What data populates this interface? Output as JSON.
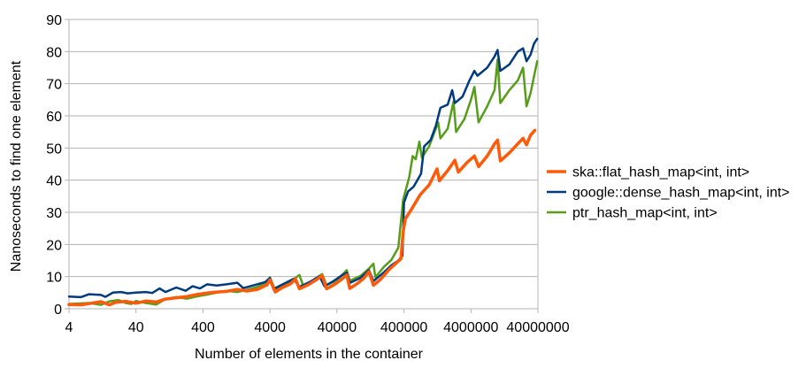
{
  "chart_data": {
    "type": "line",
    "title": "",
    "xlabel": "Number of elements in the container",
    "ylabel": "Nanoseconds to find one element",
    "x_scale": "log",
    "xlim": [
      4,
      40000000
    ],
    "ylim": [
      0,
      90
    ],
    "y_ticks": [
      "0",
      "10",
      "20",
      "30",
      "40",
      "50",
      "60",
      "70",
      "80",
      "90"
    ],
    "x_ticks": [
      "4",
      "40",
      "400",
      "4000",
      "40000",
      "400000",
      "4000000",
      "40000000"
    ],
    "grid": "horizontal",
    "legend_position": "right",
    "series": [
      {
        "name": "ska::flat_hash_map<int, int>",
        "color": "#ff5a0a",
        "points": [
          [
            4,
            1.3
          ],
          [
            6,
            1.2
          ],
          [
            8,
            1.6
          ],
          [
            12,
            2.2
          ],
          [
            16,
            1.2
          ],
          [
            20,
            2.0
          ],
          [
            28,
            2.3
          ],
          [
            40,
            1.7
          ],
          [
            56,
            2.4
          ],
          [
            80,
            2.1
          ],
          [
            110,
            3.0
          ],
          [
            160,
            3.4
          ],
          [
            230,
            3.8
          ],
          [
            320,
            4.4
          ],
          [
            460,
            4.9
          ],
          [
            640,
            5.2
          ],
          [
            900,
            5.4
          ],
          [
            1300,
            6.0
          ],
          [
            1800,
            5.5
          ],
          [
            2600,
            6.0
          ],
          [
            3600,
            7.4
          ],
          [
            4000,
            9.0
          ],
          [
            4800,
            5.2
          ],
          [
            6000,
            6.5
          ],
          [
            8200,
            7.8
          ],
          [
            9600,
            9.3
          ],
          [
            11000,
            6.2
          ],
          [
            15000,
            7.5
          ],
          [
            20000,
            9.1
          ],
          [
            24000,
            10.3
          ],
          [
            28000,
            6.2
          ],
          [
            36000,
            7.4
          ],
          [
            46000,
            9.0
          ],
          [
            56000,
            10.5
          ],
          [
            62000,
            6.3
          ],
          [
            80000,
            7.8
          ],
          [
            100000,
            9.4
          ],
          [
            120000,
            11.5
          ],
          [
            140000,
            7.3
          ],
          [
            180000,
            9.2
          ],
          [
            240000,
            12.2
          ],
          [
            300000,
            14.0
          ],
          [
            360000,
            15.5
          ],
          [
            390000,
            24.0
          ],
          [
            420000,
            28.0
          ],
          [
            520000,
            31.0
          ],
          [
            700000,
            35.5
          ],
          [
            950000,
            38.5
          ],
          [
            1250000,
            43.5
          ],
          [
            1350000,
            39.8
          ],
          [
            1800000,
            43.0
          ],
          [
            2300000,
            46.2
          ],
          [
            2600000,
            42.5
          ],
          [
            3500000,
            45.5
          ],
          [
            4500000,
            47.5
          ],
          [
            5200000,
            44.2
          ],
          [
            7000000,
            47.5
          ],
          [
            9000000,
            51.3
          ],
          [
            10000000,
            52.5
          ],
          [
            11000000,
            46.0
          ],
          [
            15000000,
            48.5
          ],
          [
            20000000,
            51.3
          ],
          [
            24000000,
            53.0
          ],
          [
            27000000,
            51.0
          ],
          [
            31000000,
            54.0
          ],
          [
            36000000,
            55.5
          ]
        ]
      },
      {
        "name": "google::dense_hash_map<int, int>",
        "color": "#003b80",
        "points": [
          [
            4,
            3.8
          ],
          [
            6,
            3.6
          ],
          [
            8,
            4.5
          ],
          [
            12,
            4.3
          ],
          [
            14,
            3.7
          ],
          [
            18,
            5.0
          ],
          [
            24,
            5.2
          ],
          [
            30,
            4.8
          ],
          [
            40,
            5.0
          ],
          [
            56,
            5.2
          ],
          [
            70,
            4.9
          ],
          [
            90,
            6.3
          ],
          [
            110,
            5.2
          ],
          [
            160,
            6.6
          ],
          [
            220,
            5.6
          ],
          [
            280,
            7.0
          ],
          [
            360,
            6.3
          ],
          [
            460,
            7.6
          ],
          [
            640,
            7.2
          ],
          [
            900,
            7.6
          ],
          [
            1300,
            8.1
          ],
          [
            1600,
            6.4
          ],
          [
            2400,
            7.4
          ],
          [
            3400,
            8.3
          ],
          [
            4000,
            9.6
          ],
          [
            4500,
            6.1
          ],
          [
            6200,
            7.6
          ],
          [
            9000,
            9.3
          ],
          [
            11000,
            6.8
          ],
          [
            16000,
            8.4
          ],
          [
            22000,
            10.1
          ],
          [
            26000,
            7.0
          ],
          [
            36000,
            8.7
          ],
          [
            48000,
            10.5
          ],
          [
            56000,
            11.2
          ],
          [
            62000,
            8.0
          ],
          [
            88000,
            9.5
          ],
          [
            120000,
            12.0
          ],
          [
            140000,
            8.6
          ],
          [
            200000,
            11.3
          ],
          [
            260000,
            13.5
          ],
          [
            330000,
            15.0
          ],
          [
            380000,
            16.5
          ],
          [
            400000,
            33.0
          ],
          [
            460000,
            36.5
          ],
          [
            560000,
            38.0
          ],
          [
            720000,
            42.0
          ],
          [
            800000,
            50.5
          ],
          [
            1000000,
            52.5
          ],
          [
            1200000,
            57.0
          ],
          [
            1400000,
            62.5
          ],
          [
            1800000,
            63.5
          ],
          [
            2100000,
            68.0
          ],
          [
            2300000,
            64.0
          ],
          [
            3000000,
            66.0
          ],
          [
            3800000,
            71.0
          ],
          [
            4500000,
            74.0
          ],
          [
            5000000,
            72.5
          ],
          [
            7000000,
            75.0
          ],
          [
            9000000,
            78.5
          ],
          [
            10000000,
            80.5
          ],
          [
            11000000,
            74.0
          ],
          [
            15000000,
            76.0
          ],
          [
            20000000,
            80.0
          ],
          [
            24000000,
            81.0
          ],
          [
            27000000,
            77.0
          ],
          [
            31000000,
            79.0
          ],
          [
            35000000,
            82.5
          ],
          [
            39000000,
            84.0
          ]
        ]
      },
      {
        "name": "ptr_hash_map<int, int>",
        "color": "#579d1c",
        "points": [
          [
            4,
            1.5
          ],
          [
            8,
            1.8
          ],
          [
            12,
            1.2
          ],
          [
            16,
            2.3
          ],
          [
            22,
            2.7
          ],
          [
            28,
            1.8
          ],
          [
            34,
            1.5
          ],
          [
            40,
            2.4
          ],
          [
            56,
            1.8
          ],
          [
            80,
            1.3
          ],
          [
            110,
            3.0
          ],
          [
            160,
            3.6
          ],
          [
            230,
            3.1
          ],
          [
            320,
            3.8
          ],
          [
            460,
            4.4
          ],
          [
            640,
            5.0
          ],
          [
            900,
            5.6
          ],
          [
            1300,
            5.2
          ],
          [
            1800,
            5.9
          ],
          [
            2600,
            6.8
          ],
          [
            3600,
            8.2
          ],
          [
            4000,
            9.7
          ],
          [
            4800,
            5.8
          ],
          [
            6500,
            7.3
          ],
          [
            9000,
            9.2
          ],
          [
            11000,
            10.5
          ],
          [
            12500,
            7.2
          ],
          [
            17000,
            8.7
          ],
          [
            24000,
            10.8
          ],
          [
            28000,
            7.3
          ],
          [
            40000,
            8.9
          ],
          [
            56000,
            12.0
          ],
          [
            62000,
            8.7
          ],
          [
            90000,
            10.2
          ],
          [
            120000,
            12.5
          ],
          [
            140000,
            14.0
          ],
          [
            150000,
            9.8
          ],
          [
            200000,
            13.0
          ],
          [
            260000,
            15.2
          ],
          [
            330000,
            19.0
          ],
          [
            390000,
            34.0
          ],
          [
            480000,
            41.0
          ],
          [
            540000,
            47.5
          ],
          [
            600000,
            46.5
          ],
          [
            680000,
            52.0
          ],
          [
            740000,
            47.0
          ],
          [
            950000,
            50.5
          ],
          [
            1300000,
            58.0
          ],
          [
            1400000,
            53.0
          ],
          [
            1800000,
            56.0
          ],
          [
            2200000,
            64.5
          ],
          [
            2400000,
            55.0
          ],
          [
            3200000,
            59.0
          ],
          [
            4000000,
            65.0
          ],
          [
            4500000,
            69.0
          ],
          [
            5200000,
            58.0
          ],
          [
            7000000,
            63.0
          ],
          [
            9000000,
            68.0
          ],
          [
            10000000,
            77.5
          ],
          [
            11000000,
            64.0
          ],
          [
            15000000,
            68.0
          ],
          [
            20000000,
            71.0
          ],
          [
            24000000,
            75.0
          ],
          [
            27000000,
            63.0
          ],
          [
            31000000,
            67.0
          ],
          [
            36000000,
            73.5
          ],
          [
            39000000,
            77.0
          ]
        ]
      }
    ]
  }
}
